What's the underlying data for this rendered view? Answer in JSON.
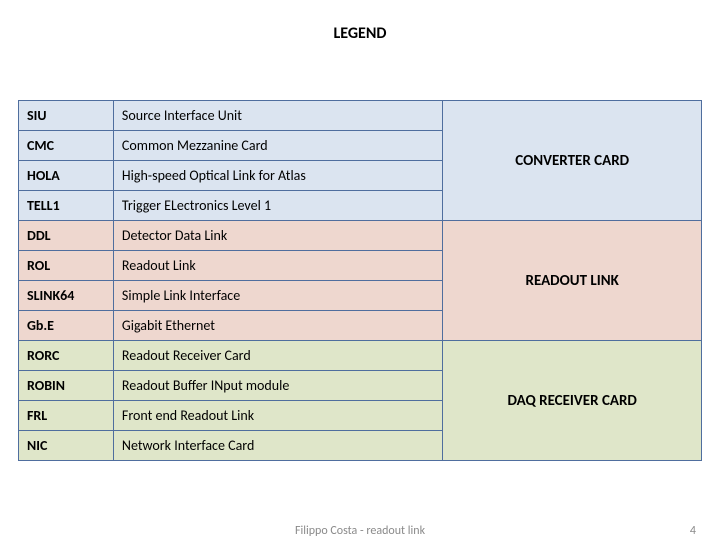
{
  "title": "LEGEND",
  "colors": {
    "border": "#4f6e9e",
    "group_bg": [
      "#dbe4f0",
      "#eed7cf",
      "#dfe6c9"
    ],
    "row_bg": [
      "#dbe4f0",
      "#eed7cf",
      "#dfe6c9"
    ]
  },
  "groups": [
    {
      "label": "CONVERTER CARD",
      "rows": [
        {
          "acronym": "SIU",
          "desc": "Source Interface Unit"
        },
        {
          "acronym": "CMC",
          "desc": "Common Mezzanine Card"
        },
        {
          "acronym": "HOLA",
          "desc": "High-speed Optical Link for Atlas"
        },
        {
          "acronym": "TELL1",
          "desc": "Trigger ELectronics Level 1"
        }
      ]
    },
    {
      "label": "READOUT LINK",
      "rows": [
        {
          "acronym": "DDL",
          "desc": "Detector Data Link"
        },
        {
          "acronym": "ROL",
          "desc": "Readout Link"
        },
        {
          "acronym": "SLINK64",
          "desc": "Simple Link Interface"
        },
        {
          "acronym": "Gb.E",
          "desc": "Gigabit Ethernet"
        }
      ]
    },
    {
      "label": "DAQ RECEIVER CARD",
      "rows": [
        {
          "acronym": "RORC",
          "desc": "Readout Receiver Card"
        },
        {
          "acronym": "ROBIN",
          "desc": "Readout Buffer INput module"
        },
        {
          "acronym": "FRL",
          "desc": "Front end Readout Link"
        },
        {
          "acronym": "NIC",
          "desc": "Network Interface Card"
        }
      ]
    }
  ],
  "footer": {
    "author": "Filippo Costa - readout link",
    "page": "4"
  }
}
